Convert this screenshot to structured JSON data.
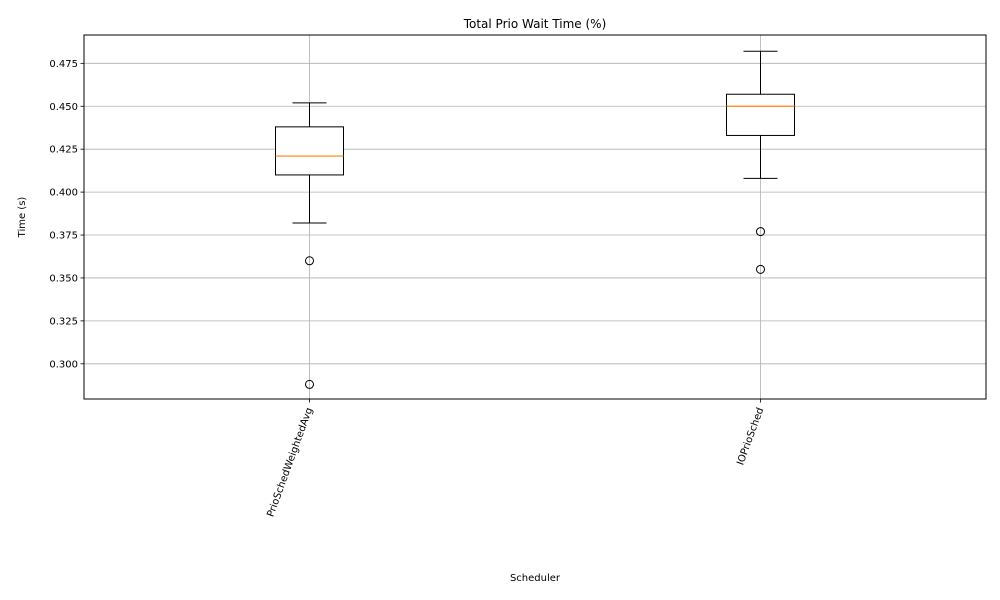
{
  "chart_data": {
    "type": "box",
    "title": "Total Prio Wait Time (%)",
    "xlabel": "Scheduler",
    "ylabel": "Time (s)",
    "ylim": [
      0.2795,
      0.4915
    ],
    "yticks": [
      "0.300",
      "0.325",
      "0.350",
      "0.375",
      "0.400",
      "0.425",
      "0.450",
      "0.475"
    ],
    "grid": true,
    "x_tick_rotation": 70,
    "median_color": "#ff7f0e",
    "box_color": "#000000",
    "grid_color": "#b0b0b0",
    "categories": [
      "PrioSchedWeightedAvg",
      "IOPrioSched"
    ],
    "boxes": [
      {
        "name": "PrioSchedWeightedAvg",
        "whisker_low": 0.382,
        "q1": 0.41,
        "median": 0.421,
        "q3": 0.438,
        "whisker_high": 0.452,
        "outliers": [
          0.36,
          0.288
        ]
      },
      {
        "name": "IOPrioSched",
        "whisker_low": 0.408,
        "q1": 0.433,
        "median": 0.45,
        "q3": 0.457,
        "whisker_high": 0.482,
        "outliers": [
          0.377,
          0.355
        ]
      }
    ]
  }
}
